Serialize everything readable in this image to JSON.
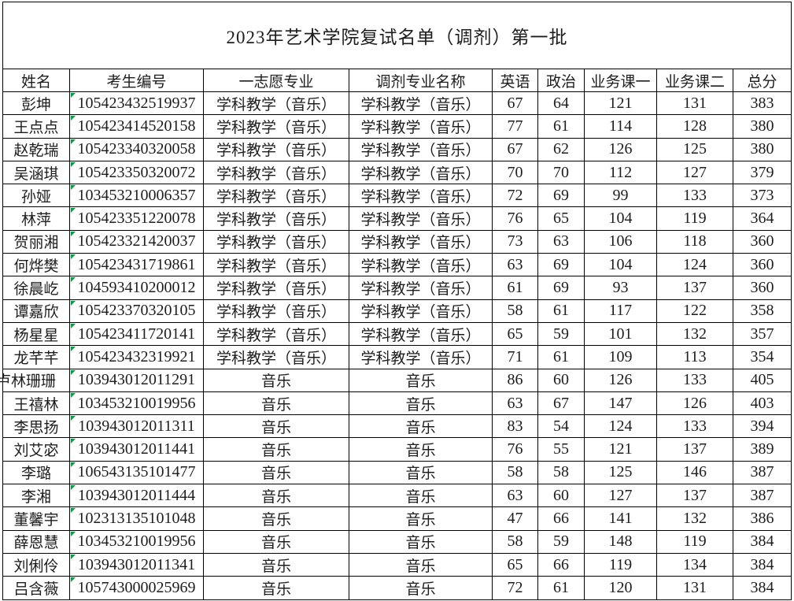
{
  "title": "2023年艺术学院复试名单（调剂）第一批",
  "colors": {
    "border": "#000000",
    "text": "#1d1d1d",
    "corner_flag_green": "#00a23a"
  },
  "table": {
    "headers": [
      "姓名",
      "考生编号",
      "一志愿专业",
      "调剂专业名称",
      "英语",
      "政治",
      "业务课一",
      "业务课二",
      "总分"
    ],
    "rows": [
      [
        "彭坤",
        "105423432519937",
        "学科教学（音乐）",
        "学科教学（音乐）",
        "67",
        "64",
        "121",
        "131",
        "383"
      ],
      [
        "王点点",
        "105423414520158",
        "学科教学（音乐）",
        "学科教学（音乐）",
        "77",
        "61",
        "114",
        "128",
        "380"
      ],
      [
        "赵乾瑞",
        "105423340320058",
        "学科教学（音乐）",
        "学科教学（音乐）",
        "67",
        "62",
        "126",
        "125",
        "380"
      ],
      [
        "吴涵琪",
        "105423350320072",
        "学科教学（音乐）",
        "学科教学（音乐）",
        "70",
        "70",
        "112",
        "127",
        "379"
      ],
      [
        "孙娅",
        "103453210006357",
        "学科教学（音乐）",
        "学科教学（音乐）",
        "72",
        "69",
        "99",
        "133",
        "373"
      ],
      [
        "林萍",
        "105423351220078",
        "学科教学（音乐）",
        "学科教学（音乐）",
        "76",
        "65",
        "104",
        "119",
        "364"
      ],
      [
        "贺丽湘",
        "105423321420037",
        "学科教学（音乐）",
        "学科教学（音乐）",
        "73",
        "63",
        "106",
        "118",
        "360"
      ],
      [
        "何烨樊",
        "105423431719861",
        "学科教学（音乐）",
        "学科教学（音乐）",
        "63",
        "69",
        "104",
        "124",
        "360"
      ],
      [
        "徐晨屹",
        "104593410200012",
        "学科教学（音乐）",
        "学科教学（音乐）",
        "61",
        "69",
        "93",
        "137",
        "360"
      ],
      [
        "谭嘉欣",
        "105423370320105",
        "学科教学（音乐）",
        "学科教学（音乐）",
        "58",
        "61",
        "117",
        "122",
        "358"
      ],
      [
        "杨星星",
        "105423411720141",
        "学科教学（音乐）",
        "学科教学（音乐）",
        "65",
        "59",
        "101",
        "132",
        "357"
      ],
      [
        "龙芊芊",
        "105423432319921",
        "学科教学（音乐）",
        "学科教学（音乐）",
        "71",
        "61",
        "109",
        "113",
        "354"
      ],
      [
        "卢林珊珊",
        "103943012011291",
        "音乐",
        "音乐",
        "86",
        "60",
        "126",
        "133",
        "405"
      ],
      [
        "王禧林",
        "103453210019956",
        "音乐",
        "音乐",
        "63",
        "67",
        "147",
        "126",
        "403"
      ],
      [
        "李思扬",
        "103943012011311",
        "音乐",
        "音乐",
        "83",
        "54",
        "124",
        "133",
        "394"
      ],
      [
        "刘艾宓",
        "103943012011441",
        "音乐",
        "音乐",
        "76",
        "55",
        "121",
        "137",
        "389"
      ],
      [
        "李璐",
        "106543135101477",
        "音乐",
        "音乐",
        "58",
        "58",
        "125",
        "146",
        "387"
      ],
      [
        "李湘",
        "103943012011444",
        "音乐",
        "音乐",
        "63",
        "60",
        "127",
        "137",
        "387"
      ],
      [
        "董馨宇",
        "102313135101048",
        "音乐",
        "音乐",
        "47",
        "66",
        "141",
        "132",
        "386"
      ],
      [
        "薛恩慧",
        "103453210019956",
        "音乐",
        "音乐",
        "58",
        "59",
        "148",
        "119",
        "384"
      ],
      [
        "刘俐伶",
        "103943012011341",
        "音乐",
        "音乐",
        "65",
        "66",
        "119",
        "134",
        "384"
      ],
      [
        "吕含薇",
        "105743000025969",
        "音乐",
        "音乐",
        "72",
        "61",
        "120",
        "131",
        "384"
      ]
    ]
  }
}
